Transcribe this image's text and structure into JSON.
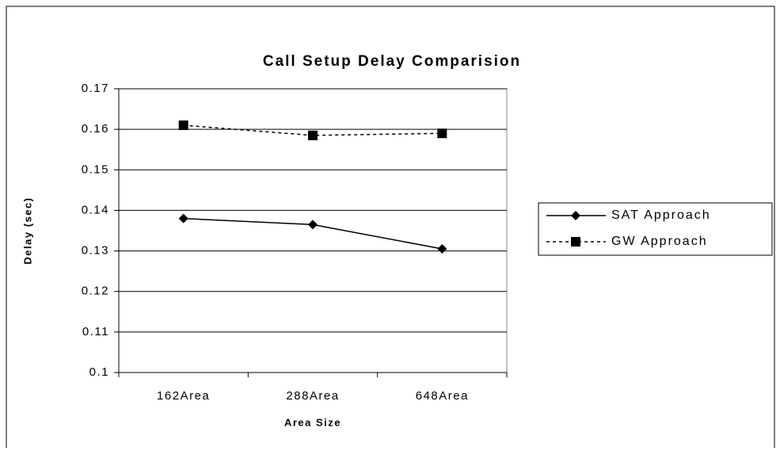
{
  "chart_data": {
    "type": "line",
    "title": "Call Setup Delay Comparision",
    "x_label": "Area Size",
    "y_label": "Delay (sec)",
    "categories": [
      "162Area",
      "288Area",
      "648Area"
    ],
    "series": [
      {
        "name": "SAT Approach",
        "color": "#000000",
        "line_style": "solid",
        "marker": "diamond",
        "values": [
          0.138,
          0.1365,
          0.1305
        ]
      },
      {
        "name": "GW Approach",
        "color": "#000000",
        "line_style": "dashed",
        "marker": "square",
        "values": [
          0.161,
          0.1585,
          0.159
        ]
      }
    ],
    "ylim": [
      0.1,
      0.17
    ],
    "yticks": [
      0.1,
      0.11,
      0.12,
      0.13,
      0.14,
      0.15,
      0.16,
      0.17
    ],
    "grid": true,
    "legend": "right"
  }
}
